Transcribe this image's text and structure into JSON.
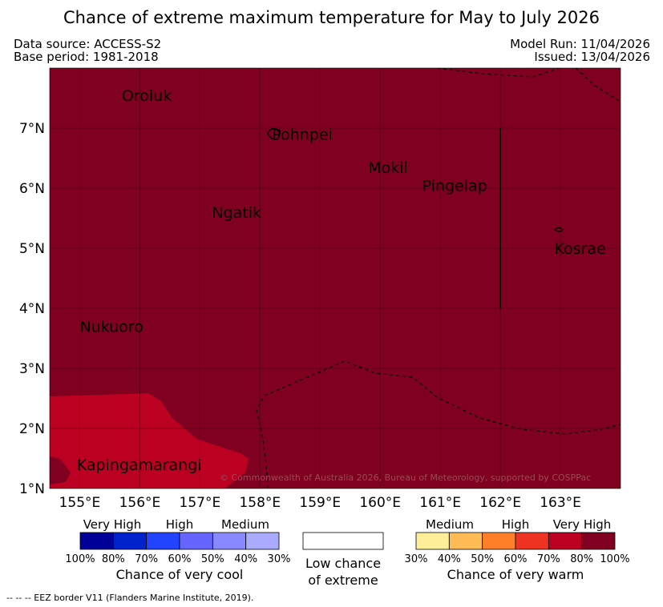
{
  "title": "Chance of extreme maximum temperature for May to July 2026",
  "meta": {
    "data_source": "Data source: ACCESS-S2",
    "base_period": "Base period: 1981-2018",
    "model_run": "Model Run: 11/04/2026",
    "issued": "Issued: 13/04/2026"
  },
  "map": {
    "lon_range": [
      154.5,
      164.0
    ],
    "lat_range": [
      1.0,
      8.0
    ],
    "x_ticks": [
      {
        "lon": 155,
        "label": "155°E"
      },
      {
        "lon": 156,
        "label": "156°E"
      },
      {
        "lon": 157,
        "label": "157°E"
      },
      {
        "lon": 158,
        "label": "158°E"
      },
      {
        "lon": 159,
        "label": "159°E"
      },
      {
        "lon": 160,
        "label": "160°E"
      },
      {
        "lon": 161,
        "label": "161°E"
      },
      {
        "lon": 162,
        "label": "162°E"
      },
      {
        "lon": 163,
        "label": "163°E"
      }
    ],
    "y_ticks": [
      {
        "lat": 7,
        "label": "7°N"
      },
      {
        "lat": 6,
        "label": "6°N"
      },
      {
        "lat": 5,
        "label": "5°N"
      },
      {
        "lat": 4,
        "label": "4°N"
      },
      {
        "lat": 3,
        "label": "3°N"
      },
      {
        "lat": 2,
        "label": "2°N"
      },
      {
        "lat": 1,
        "label": "1°N"
      }
    ],
    "places": [
      {
        "name": "Oroluk",
        "lon": 155.7,
        "lat": 7.55
      },
      {
        "name": "Pohnpei",
        "lon": 158.2,
        "lat": 6.9
      },
      {
        "name": "Mokil",
        "lon": 159.8,
        "lat": 6.35
      },
      {
        "name": "Pingelap",
        "lon": 160.7,
        "lat": 6.05
      },
      {
        "name": "Ngatik",
        "lon": 157.2,
        "lat": 5.6
      },
      {
        "name": "Kosrae",
        "lon": 162.9,
        "lat": 5.0
      },
      {
        "name": "Nukuoro",
        "lon": 155.0,
        "lat": 3.7
      },
      {
        "name": "Kapingamarangi",
        "lon": 154.95,
        "lat": 1.4
      }
    ],
    "dominant_category": "80%-100% (very high chance of very warm)",
    "southwest_category": "70%-80% (high chance of very warm)",
    "copyright": "© Commonwealth of Australia 2026, Bureau of Meteorology, supported by COSPPac"
  },
  "legend": {
    "cool": {
      "headings": [
        "Very High",
        "High",
        "Medium"
      ],
      "ticks": [
        "100%",
        "80%",
        "70%",
        "60%",
        "50%",
        "40%",
        "30%"
      ],
      "caption": "Chance of very cool",
      "colors": [
        "#000099",
        "#0022cc",
        "#2244ff",
        "#6666ff",
        "#8888ff",
        "#aaaaff"
      ]
    },
    "low": {
      "caption_line1": "Low chance",
      "caption_line2": "of extreme",
      "color": "#ffffff"
    },
    "warm": {
      "headings": [
        "Medium",
        "High",
        "Very High"
      ],
      "ticks": [
        "30%",
        "40%",
        "50%",
        "60%",
        "70%",
        "80%",
        "100%"
      ],
      "caption": "Chance of very warm",
      "colors": [
        "#ffee99",
        "#ffbb55",
        "#ff7f2a",
        "#ee3322",
        "#bb0022",
        "#800020"
      ]
    }
  },
  "footnote": "-- -- -- EEZ border V11 (Flanders Marine Institute, 2019).",
  "colors": {
    "very_high_warm": "#800020",
    "high_warm": "#bb0022"
  }
}
